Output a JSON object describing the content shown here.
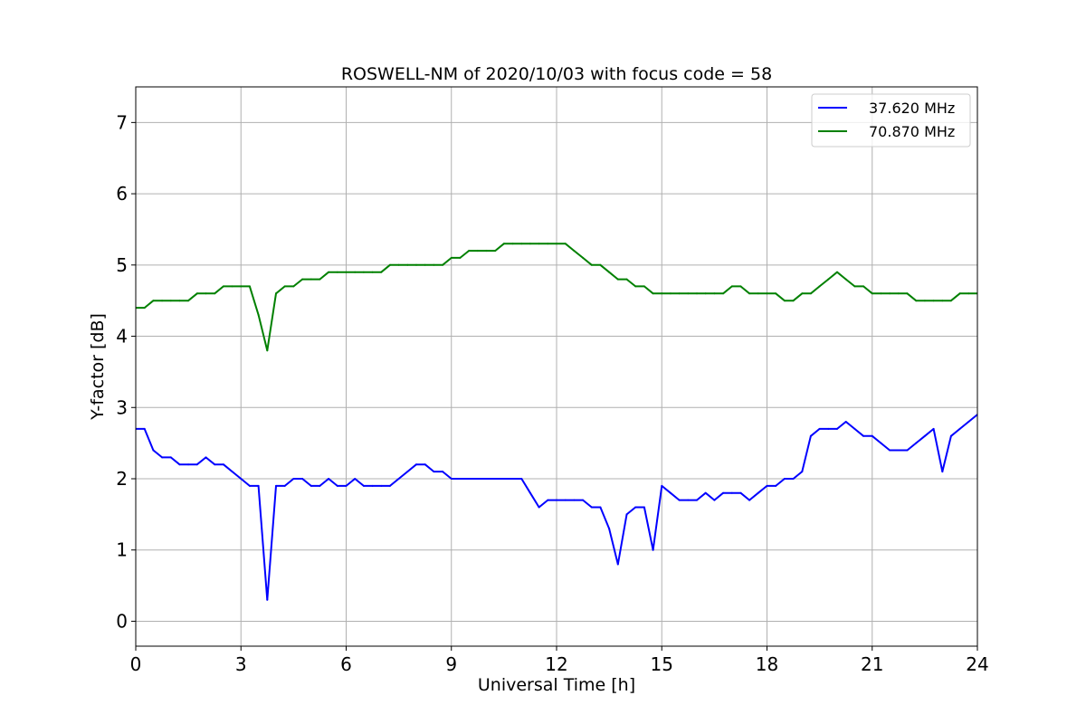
{
  "chart_data": {
    "type": "line",
    "title": "ROSWELL-NM of 2020/10/03 with focus code = 58",
    "xlabel": "Universal Time [h]",
    "ylabel": "Y-factor [dB]",
    "xlim": [
      0,
      24
    ],
    "ylim": [
      -0.35,
      7.5
    ],
    "xticks": [
      "0",
      "3",
      "6",
      "9",
      "12",
      "15",
      "18",
      "21",
      "24"
    ],
    "xtick_values": [
      0,
      3,
      6,
      9,
      12,
      15,
      18,
      21,
      24
    ],
    "yticks": [
      "0",
      "1",
      "2",
      "3",
      "4",
      "5",
      "6",
      "7"
    ],
    "ytick_values": [
      0,
      1,
      2,
      3,
      4,
      5,
      6,
      7
    ],
    "grid": true,
    "legend_position": "top-right",
    "series": [
      {
        "name": "37.620 MHz",
        "color": "#0000ff",
        "x": [
          0.0,
          0.25,
          0.5,
          0.75,
          1.0,
          1.25,
          1.5,
          1.75,
          2.0,
          2.25,
          2.5,
          2.75,
          3.0,
          3.25,
          3.5,
          3.75,
          4.0,
          4.25,
          4.5,
          4.75,
          5.0,
          5.25,
          5.5,
          5.75,
          6.0,
          6.25,
          6.5,
          6.75,
          7.0,
          7.25,
          7.5,
          7.75,
          8.0,
          8.25,
          8.5,
          8.75,
          9.0,
          9.25,
          9.5,
          9.75,
          10.0,
          10.25,
          10.5,
          10.75,
          11.0,
          11.25,
          11.5,
          11.75,
          12.0,
          12.25,
          12.5,
          12.75,
          13.0,
          13.25,
          13.5,
          13.75,
          14.0,
          14.25,
          14.5,
          14.75,
          15.0,
          15.25,
          15.5,
          15.75,
          16.0,
          16.25,
          16.5,
          16.75,
          17.0,
          17.25,
          17.5,
          17.75,
          18.0,
          18.25,
          18.5,
          18.75,
          19.0,
          19.25,
          19.5,
          19.75,
          20.0,
          20.25,
          20.5,
          20.75,
          21.0,
          21.25,
          21.5,
          21.75,
          22.0,
          22.25,
          22.5,
          22.75,
          23.0,
          23.25,
          23.5,
          23.75,
          24.0
        ],
        "values": [
          2.7,
          2.7,
          2.4,
          2.3,
          2.3,
          2.2,
          2.2,
          2.2,
          2.3,
          2.2,
          2.2,
          2.1,
          2.0,
          1.9,
          1.9,
          0.3,
          1.9,
          1.9,
          2.0,
          2.0,
          1.9,
          1.9,
          2.0,
          1.9,
          1.9,
          2.0,
          1.9,
          1.9,
          1.9,
          1.9,
          2.0,
          2.1,
          2.2,
          2.2,
          2.1,
          2.1,
          2.0,
          2.0,
          2.0,
          2.0,
          2.0,
          2.0,
          2.0,
          2.0,
          2.0,
          1.8,
          1.6,
          1.7,
          1.7,
          1.7,
          1.7,
          1.7,
          1.6,
          1.6,
          1.3,
          0.8,
          1.5,
          1.6,
          1.6,
          1.0,
          1.9,
          1.8,
          1.7,
          1.7,
          1.7,
          1.8,
          1.7,
          1.8,
          1.8,
          1.8,
          1.7,
          1.8,
          1.9,
          1.9,
          2.0,
          2.0,
          2.1,
          2.6,
          2.7,
          2.7,
          2.7,
          2.8,
          2.7,
          2.6,
          2.6,
          2.5,
          2.4,
          2.4,
          2.4,
          2.5,
          2.6,
          2.7,
          2.1,
          2.6,
          2.7,
          2.8,
          2.9
        ]
      },
      {
        "name": "70.870 MHz",
        "color": "#008000",
        "x": [
          0.0,
          0.25,
          0.5,
          0.75,
          1.0,
          1.25,
          1.5,
          1.75,
          2.0,
          2.25,
          2.5,
          2.75,
          3.0,
          3.25,
          3.5,
          3.75,
          4.0,
          4.25,
          4.5,
          4.75,
          5.0,
          5.25,
          5.5,
          5.75,
          6.0,
          6.25,
          6.5,
          6.75,
          7.0,
          7.25,
          7.5,
          7.75,
          8.0,
          8.25,
          8.5,
          8.75,
          9.0,
          9.25,
          9.5,
          9.75,
          10.0,
          10.25,
          10.5,
          10.75,
          11.0,
          11.25,
          11.5,
          11.75,
          12.0,
          12.25,
          12.5,
          12.75,
          13.0,
          13.25,
          13.5,
          13.75,
          14.0,
          14.25,
          14.5,
          14.75,
          15.0,
          15.25,
          15.5,
          15.75,
          16.0,
          16.25,
          16.5,
          16.75,
          17.0,
          17.25,
          17.5,
          17.75,
          18.0,
          18.25,
          18.5,
          18.75,
          19.0,
          19.25,
          19.5,
          19.75,
          20.0,
          20.25,
          20.5,
          20.75,
          21.0,
          21.25,
          21.5,
          21.75,
          22.0,
          22.25,
          22.5,
          22.75,
          23.0,
          23.25,
          23.5,
          23.75,
          24.0
        ],
        "values": [
          4.4,
          4.4,
          4.5,
          4.5,
          4.5,
          4.5,
          4.5,
          4.6,
          4.6,
          4.6,
          4.7,
          4.7,
          4.7,
          4.7,
          4.3,
          3.8,
          4.6,
          4.7,
          4.7,
          4.8,
          4.8,
          4.8,
          4.9,
          4.9,
          4.9,
          4.9,
          4.9,
          4.9,
          4.9,
          5.0,
          5.0,
          5.0,
          5.0,
          5.0,
          5.0,
          5.0,
          5.1,
          5.1,
          5.2,
          5.2,
          5.2,
          5.2,
          5.3,
          5.3,
          5.3,
          5.3,
          5.3,
          5.3,
          5.3,
          5.3,
          5.2,
          5.1,
          5.0,
          5.0,
          4.9,
          4.8,
          4.8,
          4.7,
          4.7,
          4.6,
          4.6,
          4.6,
          4.6,
          4.6,
          4.6,
          4.6,
          4.6,
          4.6,
          4.7,
          4.7,
          4.6,
          4.6,
          4.6,
          4.6,
          4.5,
          4.5,
          4.6,
          4.6,
          4.7,
          4.8,
          4.9,
          4.8,
          4.7,
          4.7,
          4.6,
          4.6,
          4.6,
          4.6,
          4.6,
          4.5,
          4.5,
          4.5,
          4.5,
          4.5,
          4.6,
          4.6,
          4.6
        ]
      }
    ]
  }
}
